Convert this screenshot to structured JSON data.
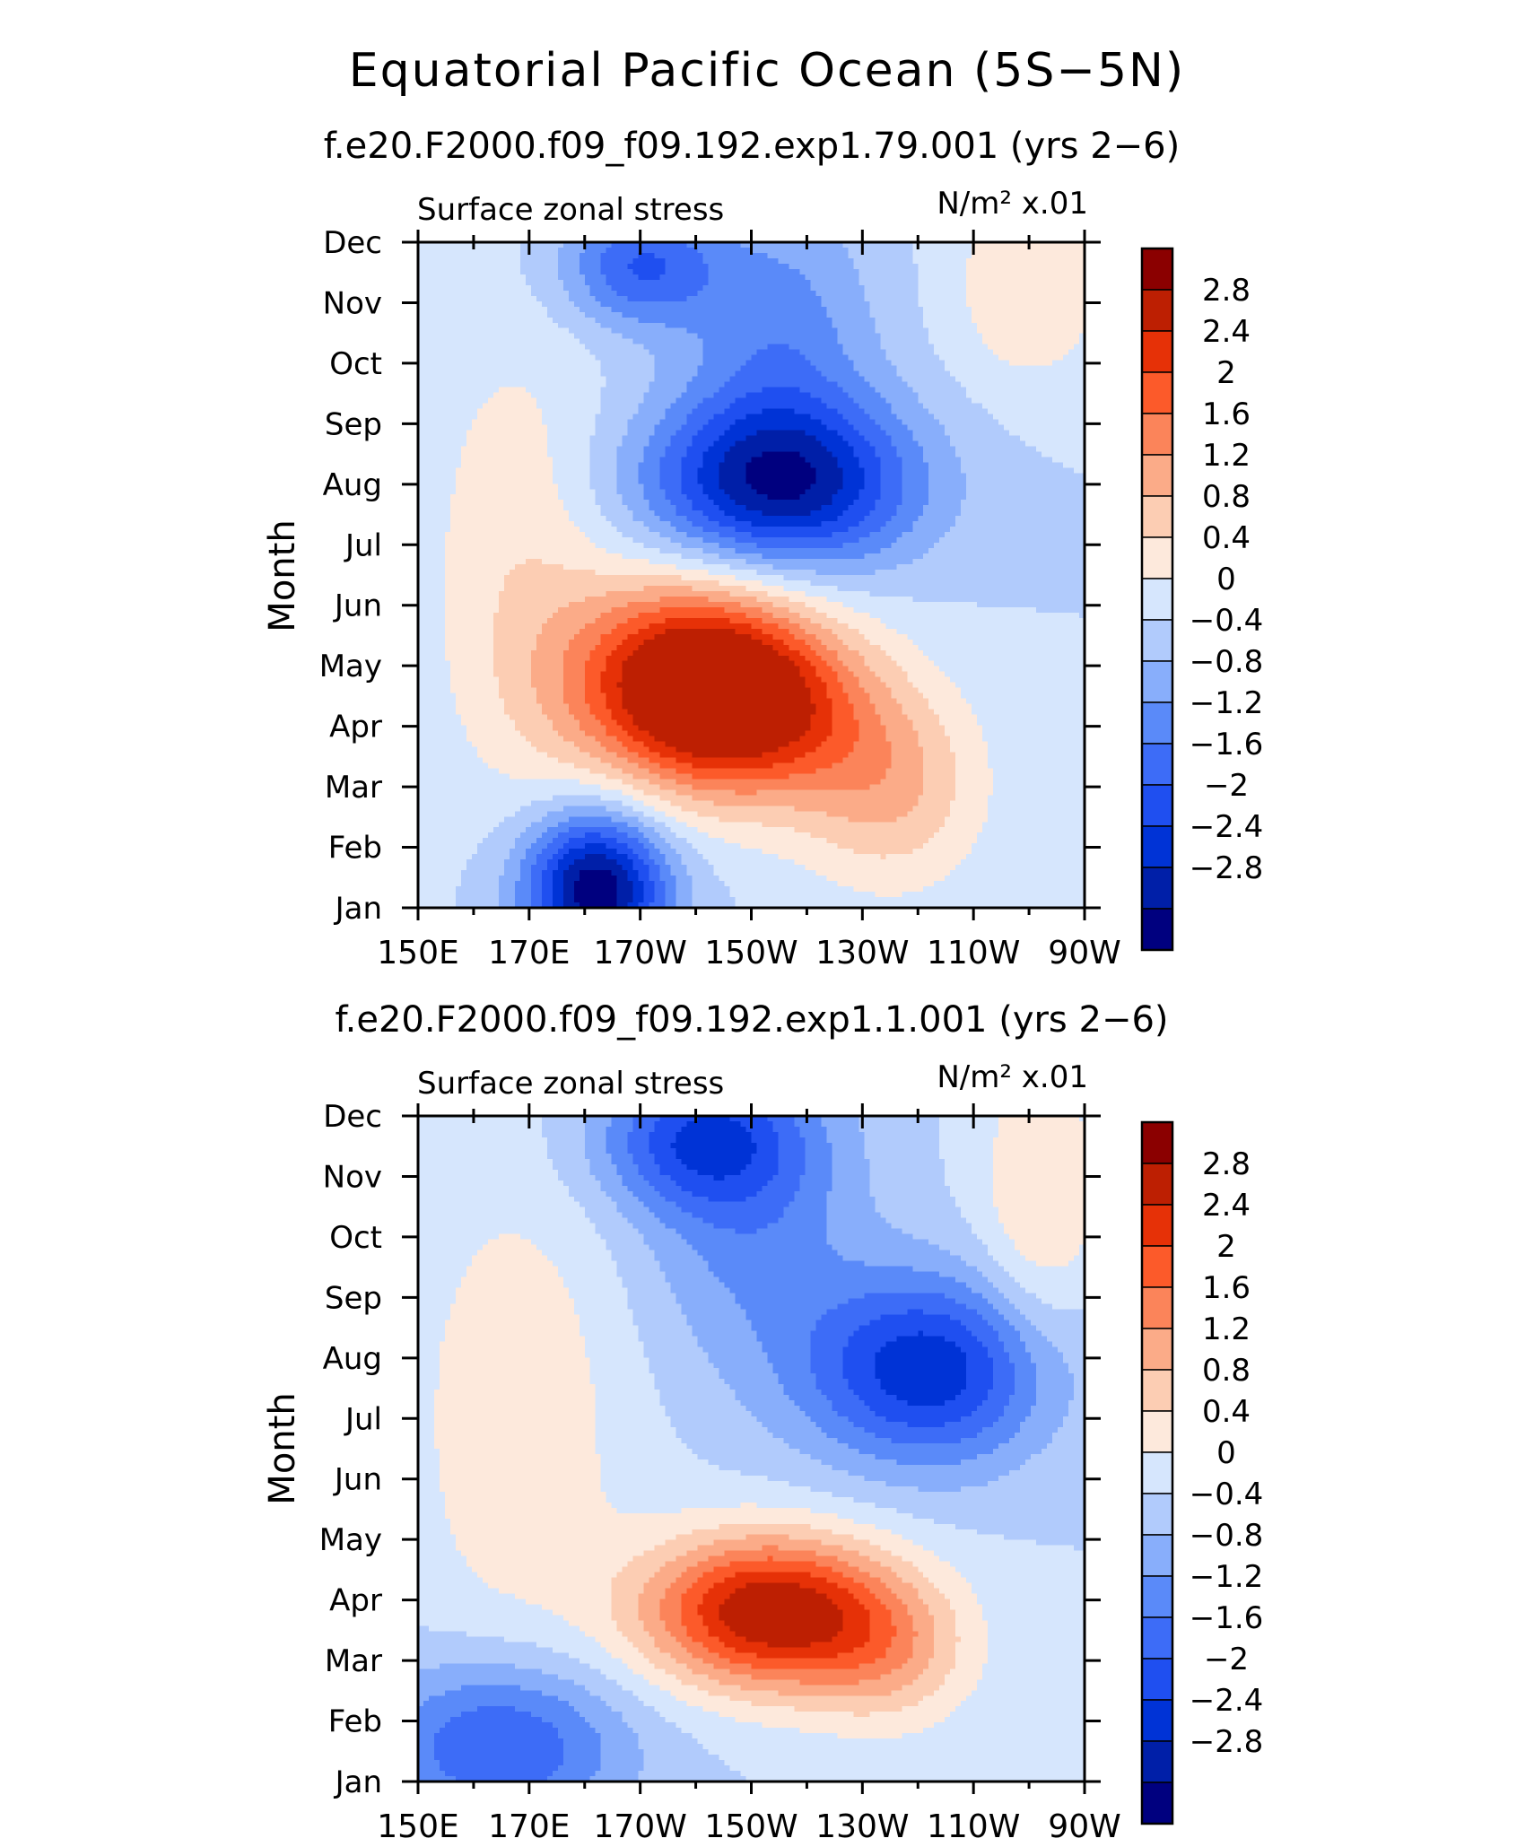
{
  "main_title": "Equatorial Pacific Ocean (5S−5N)",
  "colors": [
    "#00007f",
    "#001fa8",
    "#0033d6",
    "#1f4ff0",
    "#3d6cf7",
    "#5a8af9",
    "#88aefb",
    "#b1cbfc",
    "#d6e6fd",
    "#fde9dc",
    "#fccdb3",
    "#fbab88",
    "#fb845a",
    "#fc5a2a",
    "#e63107",
    "#bd1f02",
    "#8b0000"
  ],
  "chart_data": [
    {
      "type": "heatmap",
      "title": "f.e20.F2000.f09_f09.192.exp1.79.001 (yrs 2−6)",
      "variable": "Surface zonal stress",
      "units": "N/m² x.01",
      "ylabel": "Month",
      "x_ticks": [
        "150E",
        "170E",
        "170W",
        "150W",
        "130W",
        "110W",
        "90W"
      ],
      "x_range": [
        150,
        270
      ],
      "y_ticks": [
        "Jan",
        "Feb",
        "Mar",
        "Apr",
        "May",
        "Jun",
        "Jul",
        "Aug",
        "Sep",
        "Oct",
        "Nov",
        "Dec"
      ],
      "levels": [
        -2.8,
        -2.4,
        -2,
        -1.6,
        -1.2,
        -0.8,
        -0.4,
        0,
        0.4,
        0.8,
        1.2,
        1.6,
        2,
        2.4,
        2.8
      ],
      "level_labels": [
        "2.8",
        "2.4",
        "2",
        "1.6",
        "1.2",
        "0.8",
        "0.4",
        "0",
        "−0.4",
        "−0.8",
        "−1.2",
        "−1.6",
        "−2",
        "−2.4",
        "−2.8"
      ],
      "features": [
        {
          "lon": 200,
          "month": 4.7,
          "amp": 3.6,
          "sx": 16,
          "sy": 1.2
        },
        {
          "lon": 214,
          "month": 4.2,
          "amp": 1.2,
          "sx": 14,
          "sy": 1.0
        },
        {
          "lon": 235,
          "month": 3.0,
          "amp": 1.2,
          "sx": 12,
          "sy": 1.2
        },
        {
          "lon": 168,
          "month": 6.8,
          "amp": 0.7,
          "sx": 12,
          "sy": 2.8
        },
        {
          "lon": 182,
          "month": 1.3,
          "amp": -3.2,
          "sx": 9,
          "sy": 0.9
        },
        {
          "lon": 215,
          "month": 8.0,
          "amp": -2.8,
          "sx": 17,
          "sy": 1.0
        },
        {
          "lon": 190,
          "month": 11.6,
          "amp": -1.6,
          "sx": 10,
          "sy": 0.7
        },
        {
          "lon": 215,
          "month": 10.5,
          "amp": -1.0,
          "sx": 12,
          "sy": 1.5
        },
        {
          "lon": 260,
          "month": 11.3,
          "amp": 0.8,
          "sx": 10,
          "sy": 1.2
        }
      ]
    },
    {
      "type": "heatmap",
      "title": "f.e20.F2000.f09_f09.192.exp1.1.001 (yrs 2−6)",
      "variable": "Surface zonal stress",
      "units": "N/m² x.01",
      "ylabel": "Month",
      "x_ticks": [
        "150E",
        "170E",
        "170W",
        "150W",
        "130W",
        "110W",
        "90W"
      ],
      "x_range": [
        150,
        270
      ],
      "y_ticks": [
        "Jan",
        "Feb",
        "Mar",
        "Apr",
        "May",
        "Jun",
        "Jul",
        "Aug",
        "Sep",
        "Oct",
        "Nov",
        "Dec"
      ],
      "levels": [
        -2.8,
        -2.4,
        -2,
        -1.6,
        -1.2,
        -0.8,
        -0.4,
        0,
        0.4,
        0.8,
        1.2,
        1.6,
        2,
        2.4,
        2.8
      ],
      "level_labels": [
        "2.8",
        "2.4",
        "2",
        "1.6",
        "1.2",
        "0.8",
        "0.4",
        "0",
        "−0.4",
        "−0.8",
        "−1.2",
        "−1.6",
        "−2",
        "−2.4",
        "−2.8"
      ],
      "features": [
        {
          "lon": 213,
          "month": 3.8,
          "amp": 3.2,
          "sx": 16,
          "sy": 0.9
        },
        {
          "lon": 235,
          "month": 3.1,
          "amp": 1.0,
          "sx": 11,
          "sy": 0.9
        },
        {
          "lon": 168,
          "month": 7.0,
          "amp": 0.7,
          "sx": 14,
          "sy": 3.0
        },
        {
          "lon": 165,
          "month": 1.6,
          "amp": -1.7,
          "sx": 16,
          "sy": 1.0
        },
        {
          "lon": 242,
          "month": 7.8,
          "amp": -2.3,
          "sx": 16,
          "sy": 1.1
        },
        {
          "lon": 200,
          "month": 11.6,
          "amp": -1.6,
          "sx": 13,
          "sy": 0.8
        },
        {
          "lon": 210,
          "month": 10.5,
          "amp": -1.0,
          "sx": 14,
          "sy": 1.8
        },
        {
          "lon": 262,
          "month": 10.5,
          "amp": 0.8,
          "sx": 8,
          "sy": 2.0
        }
      ]
    }
  ]
}
